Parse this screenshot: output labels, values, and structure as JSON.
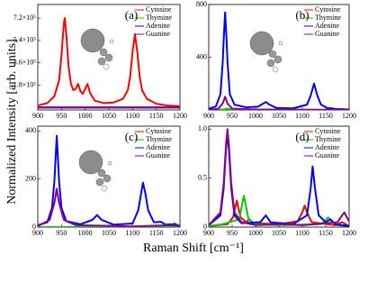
{
  "figure": {
    "ylabel": "Normalized Intensity [arb. units]",
    "xlabel": "Raman Shift [cm⁻¹]"
  },
  "chart_data": [
    {
      "type": "line",
      "label": "(a)",
      "xlim": [
        900,
        1200
      ],
      "ylim": [
        -20000,
        830000
      ],
      "xticks": [
        900,
        950,
        1000,
        1050,
        1100,
        1150,
        1200
      ],
      "yticks": [
        {
          "value": 180000,
          "label": "1.8×10⁵"
        },
        {
          "value": 360000,
          "label": "3.6×10⁵"
        },
        {
          "value": 540000,
          "label": "5.4×10⁵"
        },
        {
          "value": 720000,
          "label": "7.2×10⁵"
        }
      ],
      "legend": "upper right",
      "series": [
        {
          "name": "Cytosine",
          "color": "#ff0000",
          "x": [
            900,
            920,
            935,
            945,
            950,
            955,
            957,
            960,
            965,
            970,
            975,
            980,
            985,
            990,
            995,
            1000,
            1005,
            1010,
            1020,
            1040,
            1060,
            1080,
            1090,
            1095,
            1100,
            1105,
            1110,
            1115,
            1120,
            1130,
            1150,
            1175,
            1200
          ],
          "values": [
            15000,
            35000,
            90000,
            220000,
            420000,
            680000,
            720000,
            600000,
            330000,
            190000,
            140000,
            150000,
            190000,
            130000,
            110000,
            150000,
            190000,
            120000,
            55000,
            35000,
            40000,
            70000,
            140000,
            250000,
            450000,
            590000,
            450000,
            250000,
            140000,
            70000,
            30000,
            15000,
            10000
          ]
        },
        {
          "name": "Thymine",
          "color": "#00cc00",
          "x": [
            900,
            1200
          ],
          "values": [
            0,
            0
          ]
        },
        {
          "name": "Adenine",
          "color": "#0000ff",
          "x": [
            900,
            1200
          ],
          "values": [
            0,
            0
          ]
        },
        {
          "name": "Guanine",
          "color": "#8b008b",
          "x": [
            900,
            1200
          ],
          "values": [
            0,
            0
          ]
        }
      ]
    },
    {
      "type": "line",
      "label": "(b)",
      "xlim": [
        900,
        1200
      ],
      "ylim": [
        0,
        800
      ],
      "xticks": [
        900,
        950,
        1000,
        1050,
        1100,
        1150,
        1200
      ],
      "yticks": [
        400,
        800
      ],
      "legend": "upper right",
      "series": [
        {
          "name": "Cytosine",
          "color": "#ff0000",
          "x": [
            900,
            1200
          ],
          "values": [
            0,
            0
          ]
        },
        {
          "name": "Thymine",
          "color": "#00cc00",
          "x": [
            900,
            930,
            940,
            950,
            1200
          ],
          "values": [
            0,
            3,
            10,
            3,
            0
          ]
        },
        {
          "name": "Adenine",
          "color": "#0000ff",
          "x": [
            900,
            915,
            925,
            930,
            932,
            935,
            938,
            940,
            945,
            955,
            980,
            1005,
            1015,
            1022,
            1030,
            1045,
            1080,
            1110,
            1118,
            1125,
            1132,
            1140,
            1155,
            1160,
            1170,
            1200
          ],
          "values": [
            10,
            25,
            120,
            370,
            540,
            740,
            540,
            370,
            120,
            40,
            20,
            25,
            45,
            60,
            40,
            15,
            12,
            40,
            110,
            200,
            110,
            40,
            12,
            14,
            8,
            3
          ]
        },
        {
          "name": "Guanine",
          "color": "#8b008b",
          "x": [
            900,
            920,
            930,
            935,
            940,
            950,
            1000,
            1200
          ],
          "values": [
            2,
            8,
            50,
            100,
            50,
            10,
            3,
            1
          ]
        }
      ]
    },
    {
      "type": "line",
      "label": "(c)",
      "xlim": [
        900,
        1200
      ],
      "ylim": [
        0,
        420
      ],
      "xticks": [
        900,
        950,
        1000,
        1050,
        1100,
        1150,
        1200
      ],
      "yticks": [
        0,
        200,
        400
      ],
      "legend": "upper right",
      "series": [
        {
          "name": "Cytosine",
          "color": "#ff0000",
          "x": [
            900,
            1170,
            1185,
            1200
          ],
          "values": [
            0,
            1,
            6,
            1
          ]
        },
        {
          "name": "Thymine",
          "color": "#00cc00",
          "x": [
            900,
            1200
          ],
          "values": [
            0,
            0
          ]
        },
        {
          "name": "Adenine",
          "color": "#0000ff",
          "x": [
            900,
            920,
            930,
            935,
            940,
            945,
            950,
            960,
            990,
            1015,
            1025,
            1035,
            1060,
            1100,
            1112,
            1118,
            1122,
            1127,
            1133,
            1145,
            1160,
            1170,
            1180,
            1200
          ],
          "values": [
            8,
            20,
            80,
            190,
            380,
            190,
            80,
            25,
            12,
            30,
            50,
            30,
            10,
            15,
            70,
            140,
            185,
            140,
            70,
            20,
            22,
            10,
            12,
            4
          ]
        },
        {
          "name": "Guanine",
          "color": "#8b008b",
          "x": [
            900,
            925,
            935,
            940,
            945,
            955,
            980,
            1100,
            1180,
            1188,
            1196,
            1200
          ],
          "values": [
            4,
            30,
            100,
            160,
            100,
            30,
            8,
            3,
            8,
            15,
            8,
            5
          ]
        }
      ]
    },
    {
      "type": "line",
      "label": "(d)",
      "xlim": [
        900,
        1200
      ],
      "ylim": [
        0,
        1.03
      ],
      "xticks": [
        900,
        950,
        1000,
        1050,
        1100,
        1150,
        1200
      ],
      "yticks": [
        0,
        0.5,
        {
          "value": 1,
          "label": "1.0"
        }
      ],
      "legend": "upper right",
      "series": [
        {
          "name": "Cytosine",
          "color": "#ff0000",
          "x": [
            900,
            940,
            952,
            960,
            968,
            980,
            987,
            995,
            1050,
            1090,
            1100,
            1105,
            1110,
            1120,
            1170,
            1185,
            1200
          ],
          "values": [
            0.01,
            0.03,
            0.1,
            0.27,
            0.1,
            0.05,
            0.08,
            0.04,
            0.03,
            0.06,
            0.15,
            0.22,
            0.15,
            0.05,
            0.02,
            0.05,
            0.01
          ]
        },
        {
          "name": "Thymine",
          "color": "#00cc00",
          "x": [
            900,
            930,
            965,
            972,
            975,
            978,
            985,
            1000,
            1050,
            1140,
            1150,
            1155,
            1160,
            1175,
            1200
          ],
          "values": [
            0.01,
            0.03,
            0.08,
            0.25,
            0.32,
            0.25,
            0.08,
            0.03,
            0.02,
            0.03,
            0.07,
            0.1,
            0.07,
            0.02,
            0.01
          ]
        },
        {
          "name": "Adenine",
          "color": "#0000ff",
          "x": [
            900,
            925,
            932,
            937,
            940,
            943,
            948,
            955,
            970,
            1010,
            1022,
            1032,
            1080,
            1110,
            1118,
            1122,
            1127,
            1135,
            1150,
            1160,
            1170,
            1200
          ],
          "values": [
            0.02,
            0.12,
            0.4,
            0.8,
            0.95,
            0.8,
            0.4,
            0.12,
            0.04,
            0.05,
            0.12,
            0.05,
            0.03,
            0.12,
            0.4,
            0.62,
            0.4,
            0.12,
            0.05,
            0.08,
            0.03,
            0.01
          ]
        },
        {
          "name": "Guanine",
          "color": "#8b008b",
          "x": [
            900,
            925,
            932,
            937,
            940,
            943,
            948,
            955,
            970,
            1000,
            1050,
            1100,
            1175,
            1185,
            1190,
            1195,
            1200
          ],
          "values": [
            0.02,
            0.15,
            0.45,
            0.85,
            1.0,
            0.85,
            0.45,
            0.15,
            0.05,
            0.02,
            0.03,
            0.02,
            0.05,
            0.12,
            0.15,
            0.1,
            0.06
          ]
        }
      ]
    }
  ]
}
